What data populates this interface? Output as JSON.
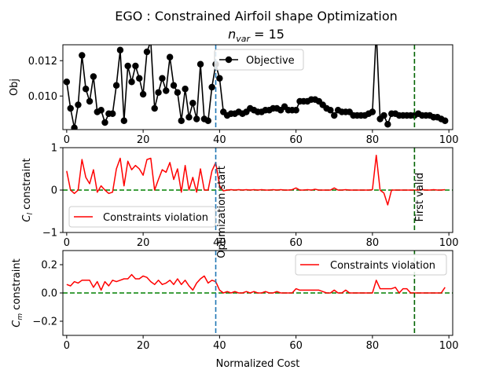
{
  "figure": {
    "title": "EGO : Constrained Airfoil shape Optimization",
    "subtitle": "n_var = 15",
    "subtitle_main": "n",
    "subtitle_sub": "var",
    "subtitle_rest": " = 15",
    "xlabel": "Normalized Cost"
  },
  "chart_data": [
    {
      "type": "line",
      "panel": "objective",
      "ylabel": "Obj",
      "xlim": [
        -1,
        101
      ],
      "ylim": [
        0.0081,
        0.0129
      ],
      "xticks": [
        0,
        20,
        40,
        60,
        80,
        100
      ],
      "yticks": [
        0.01,
        0.012
      ],
      "ytick_labels": [
        "0.010",
        "0.012"
      ],
      "legend_loc": "upper-center",
      "series": [
        {
          "name": "Objective",
          "color": "#000000",
          "marker": "circle",
          "x": [
            0,
            1,
            2,
            3,
            4,
            5,
            6,
            7,
            8,
            9,
            10,
            11,
            12,
            13,
            14,
            15,
            16,
            17,
            18,
            19,
            20,
            21,
            22,
            23,
            24,
            25,
            26,
            27,
            28,
            29,
            30,
            31,
            32,
            33,
            34,
            35,
            36,
            37,
            38,
            39,
            40,
            41,
            42,
            43,
            44,
            45,
            46,
            47,
            48,
            49,
            50,
            51,
            52,
            53,
            54,
            55,
            56,
            57,
            58,
            59,
            60,
            61,
            62,
            63,
            64,
            65,
            66,
            67,
            68,
            69,
            70,
            71,
            72,
            73,
            74,
            75,
            76,
            77,
            78,
            79,
            80,
            81,
            82,
            83,
            84,
            85,
            86,
            87,
            88,
            89,
            90,
            91,
            92,
            93,
            94,
            95,
            96,
            97,
            98,
            99
          ],
          "y": [
            0.0108,
            0.0093,
            0.0082,
            0.0095,
            0.0123,
            0.0104,
            0.0097,
            0.0111,
            0.0091,
            0.0092,
            0.0085,
            0.009,
            0.009,
            0.0106,
            0.0126,
            0.0086,
            0.0117,
            0.0108,
            0.0117,
            0.011,
            0.0101,
            0.0125,
            0.0131,
            0.0093,
            0.0102,
            0.011,
            0.0103,
            0.0122,
            0.0106,
            0.0102,
            0.0086,
            0.0104,
            0.0088,
            0.0096,
            0.0087,
            0.0118,
            0.0087,
            0.0086,
            0.0105,
            0.0118,
            0.011,
            0.0091,
            0.0089,
            0.009,
            0.009,
            0.0091,
            0.009,
            0.0091,
            0.0093,
            0.0092,
            0.0091,
            0.0091,
            0.0092,
            0.0092,
            0.0093,
            0.0093,
            0.0092,
            0.0094,
            0.0092,
            0.0092,
            0.0092,
            0.0097,
            0.0097,
            0.0097,
            0.0098,
            0.0098,
            0.0097,
            0.0095,
            0.0093,
            0.0092,
            0.0089,
            0.0092,
            0.0091,
            0.0091,
            0.0091,
            0.0089,
            0.0089,
            0.0089,
            0.0089,
            0.009,
            0.0091,
            0.0137,
            0.0087,
            0.0089,
            0.0084,
            0.009,
            0.009,
            0.0089,
            0.0089,
            0.0089,
            0.0089,
            0.0089,
            0.009,
            0.0089,
            0.0089,
            0.0089,
            0.0088,
            0.0088,
            0.0087,
            0.0086
          ]
        }
      ],
      "vlines": [
        {
          "x": 39,
          "color": "#1f77b4",
          "style": "dashed"
        },
        {
          "x": 91,
          "color": "#006400",
          "style": "dashed"
        }
      ]
    },
    {
      "type": "line",
      "panel": "cl-constraint",
      "ylabel_main": "C",
      "ylabel_sub": "l",
      "ylabel_rest": " constraint",
      "xlim": [
        -1,
        101
      ],
      "ylim": [
        -1,
        1
      ],
      "xticks": [
        0,
        20,
        40,
        60,
        80,
        100
      ],
      "yticks": [
        -1,
        0,
        1
      ],
      "ytick_labels": [
        "−1",
        "0",
        "1"
      ],
      "legend_loc": "lower-left",
      "series": [
        {
          "name": "Constraints violation",
          "color": "#ff0000",
          "x": [
            0,
            1,
            2,
            3,
            4,
            5,
            6,
            7,
            8,
            9,
            10,
            11,
            12,
            13,
            14,
            15,
            16,
            17,
            18,
            19,
            20,
            21,
            22,
            23,
            24,
            25,
            26,
            27,
            28,
            29,
            30,
            31,
            32,
            33,
            34,
            35,
            36,
            37,
            38,
            39,
            40,
            41,
            42,
            43,
            44,
            45,
            46,
            47,
            48,
            49,
            50,
            51,
            52,
            53,
            54,
            55,
            56,
            57,
            58,
            59,
            60,
            61,
            62,
            63,
            64,
            65,
            66,
            67,
            68,
            69,
            70,
            71,
            72,
            73,
            74,
            75,
            76,
            77,
            78,
            79,
            80,
            81,
            82,
            83,
            84,
            85,
            86,
            87,
            88,
            89,
            90,
            91,
            92,
            93,
            94,
            95,
            96,
            97,
            98,
            99
          ],
          "y": [
            0.45,
            0.0,
            -0.08,
            0.0,
            0.72,
            0.3,
            0.15,
            0.48,
            -0.05,
            0.1,
            0.0,
            -0.08,
            -0.05,
            0.5,
            0.75,
            0.1,
            0.68,
            0.48,
            0.58,
            0.5,
            0.35,
            0.72,
            0.75,
            0.0,
            0.25,
            0.48,
            0.42,
            0.65,
            0.25,
            0.5,
            -0.05,
            0.58,
            0.0,
            0.3,
            -0.05,
            0.5,
            0.0,
            0.0,
            0.45,
            0.65,
            0.1,
            -0.02,
            0.0,
            0.01,
            0.0,
            0.01,
            0.0,
            0.01,
            0.0,
            0.01,
            0.0,
            0.01,
            0.0,
            0.0,
            0.01,
            0.0,
            0.01,
            0.0,
            0.0,
            0.01,
            0.05,
            0.0,
            0.0,
            0.01,
            0.0,
            0.02,
            0.0,
            0.0,
            0.0,
            0.0,
            0.05,
            0.0,
            0.0,
            0.01,
            0.0,
            0.0,
            0.0,
            0.0,
            0.0,
            0.0,
            0.01,
            0.82,
            0.0,
            -0.07,
            -0.35,
            0.0,
            0.0,
            0.0,
            0.0,
            0.0,
            0.0,
            0.0,
            0.0,
            0.01,
            0.0,
            0.0,
            0.01,
            0.0,
            0.0,
            0.01
          ]
        }
      ],
      "hline": {
        "y": 0,
        "color": "#008000",
        "style": "dashed"
      },
      "vlines": [
        {
          "x": 39,
          "color": "#1f77b4",
          "style": "dashed",
          "label": "Optimization start"
        },
        {
          "x": 91,
          "color": "#006400",
          "style": "dashed",
          "label": "First valid"
        }
      ]
    },
    {
      "type": "line",
      "panel": "cm-constraint",
      "ylabel_main": "C",
      "ylabel_sub": "m",
      "ylabel_rest": " constraint",
      "xlim": [
        -1,
        101
      ],
      "ylim": [
        -0.3,
        0.3
      ],
      "xticks": [
        0,
        20,
        40,
        60,
        80,
        100
      ],
      "yticks": [
        -0.2,
        0.0,
        0.2
      ],
      "ytick_labels": [
        "−0.2",
        "0.0",
        "0.2"
      ],
      "legend_loc": "upper-right",
      "series": [
        {
          "name": "Constraints violation",
          "color": "#ff0000",
          "x": [
            0,
            1,
            2,
            3,
            4,
            5,
            6,
            7,
            8,
            9,
            10,
            11,
            12,
            13,
            14,
            15,
            16,
            17,
            18,
            19,
            20,
            21,
            22,
            23,
            24,
            25,
            26,
            27,
            28,
            29,
            30,
            31,
            32,
            33,
            34,
            35,
            36,
            37,
            38,
            39,
            40,
            41,
            42,
            43,
            44,
            45,
            46,
            47,
            48,
            49,
            50,
            51,
            52,
            53,
            54,
            55,
            56,
            57,
            58,
            59,
            60,
            61,
            62,
            63,
            64,
            65,
            66,
            67,
            68,
            69,
            70,
            71,
            72,
            73,
            74,
            75,
            76,
            77,
            78,
            79,
            80,
            81,
            82,
            83,
            84,
            85,
            86,
            87,
            88,
            89,
            90,
            91,
            92,
            93,
            94,
            95,
            96,
            97,
            98,
            99
          ],
          "y": [
            0.06,
            0.05,
            0.08,
            0.07,
            0.09,
            0.09,
            0.09,
            0.04,
            0.08,
            0.02,
            0.08,
            0.05,
            0.09,
            0.08,
            0.09,
            0.1,
            0.1,
            0.13,
            0.1,
            0.1,
            0.12,
            0.11,
            0.08,
            0.06,
            0.09,
            0.06,
            0.07,
            0.09,
            0.06,
            0.1,
            0.06,
            0.09,
            0.05,
            0.02,
            0.07,
            0.1,
            0.12,
            0.07,
            0.09,
            0.08,
            0.02,
            0.0,
            0.01,
            0.0,
            0.01,
            0.0,
            0.0,
            0.01,
            0.0,
            0.01,
            0.0,
            0.0,
            0.01,
            0.0,
            0.0,
            0.01,
            0.0,
            0.0,
            0.0,
            0.0,
            0.03,
            0.02,
            0.02,
            0.02,
            0.02,
            0.02,
            0.02,
            0.01,
            0.0,
            0.0,
            0.02,
            0.0,
            0.0,
            0.02,
            0.0,
            0.0,
            0.0,
            0.0,
            0.0,
            0.0,
            0.0,
            0.09,
            0.03,
            0.03,
            0.03,
            0.03,
            0.04,
            0.0,
            0.03,
            0.03,
            0.0,
            0.0,
            0.0,
            0.0,
            0.0,
            0.0,
            0.0,
            0.0,
            0.0,
            0.04
          ]
        }
      ],
      "hline": {
        "y": 0,
        "color": "#008000",
        "style": "dashed"
      },
      "vlines": [
        {
          "x": 39,
          "color": "#1f77b4",
          "style": "dashed"
        },
        {
          "x": 91,
          "color": "#006400",
          "style": "dashed"
        }
      ]
    }
  ]
}
